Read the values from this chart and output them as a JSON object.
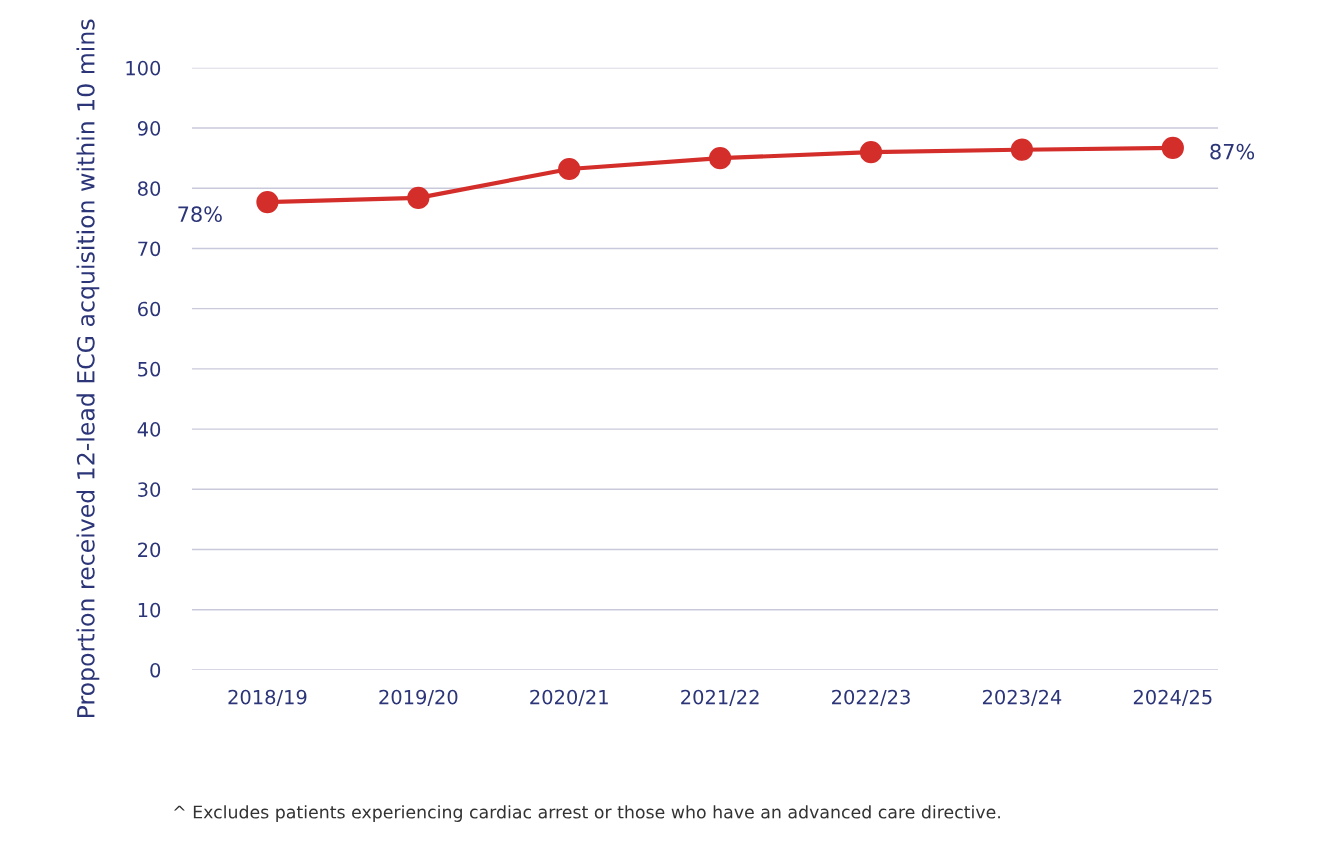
{
  "chart_data": {
    "type": "line",
    "ylabel": "Proportion received 12-lead ECG acquisition within 10 mins",
    "categories": [
      "2018/19",
      "2019/20",
      "2020/21",
      "2021/22",
      "2022/23",
      "2023/24",
      "2024/25"
    ],
    "series": [
      {
        "color": "#d42e2b",
        "values": [
          77.7,
          78.4,
          83.2,
          85.0,
          86.0,
          86.4,
          86.7
        ],
        "value_labels": [
          "78%",
          null,
          null,
          null,
          null,
          null,
          "87%"
        ]
      }
    ],
    "ylim": [
      0,
      100
    ],
    "yticks": [
      0,
      10,
      20,
      30,
      40,
      50,
      60,
      70,
      80,
      90,
      100
    ],
    "grid": "y",
    "marker": "circle",
    "line_style": "solid",
    "legend": false,
    "annotations": [
      "^ Excludes patients experiencing cardiac arrest or those who have an advanced care directive."
    ]
  }
}
